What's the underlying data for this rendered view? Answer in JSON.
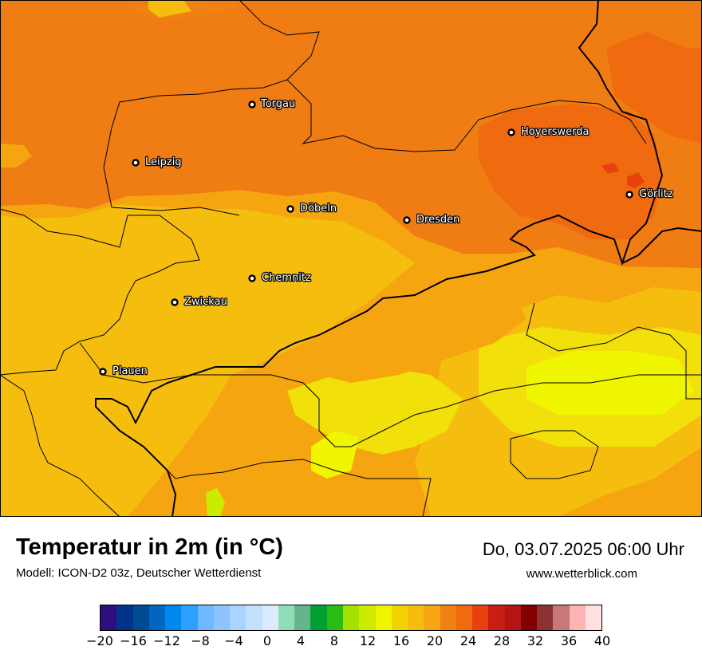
{
  "title": "Temperatur in 2m (in °C)",
  "subtitle": "Modell: ICON-D2 03z, Deutscher Wetterdienst",
  "datetime": "Do, 03.07.2025 06:00 Uhr",
  "website": "www.wetterblick.com",
  "colors": {
    "warm_orange": "#F07C14",
    "deep_orange": "#F06A0F",
    "amber": "#F5A50F",
    "golden": "#F5BE0F",
    "yellow": "#F2E00A",
    "light_yellow": "#F0F500",
    "lime": "#CCEB00",
    "red_orange": "#E8400F",
    "border": "#000000"
  },
  "cities": [
    {
      "name": "Torgau"
    },
    {
      "name": "Hoyerswerda"
    },
    {
      "name": "Leipzig"
    },
    {
      "name": "Görlitz"
    },
    {
      "name": "Döbeln"
    },
    {
      "name": "Dresden"
    },
    {
      "name": "Chemnitz"
    },
    {
      "name": "Zwickau"
    },
    {
      "name": "Plauen"
    }
  ],
  "legend": {
    "colors": [
      "#2E0E7A",
      "#00338A",
      "#004C94",
      "#0066C2",
      "#0088EE",
      "#2EA0FF",
      "#70B8FF",
      "#8CC4FF",
      "#A8D4FF",
      "#C4E0FF",
      "#DCEBFF",
      "#90DCB8",
      "#64B48C",
      "#00A032",
      "#28BE14",
      "#A4E100",
      "#CCEB00",
      "#F0F500",
      "#F2D200",
      "#F5BE0F",
      "#F5A50F",
      "#F08214",
      "#F06A0F",
      "#E8400F",
      "#C81E14",
      "#B41414",
      "#820000",
      "#8C3232",
      "#C87878",
      "#FFB4B4",
      "#FFE1E1"
    ],
    "ticks": [
      "−20",
      "−16",
      "−12",
      "−8",
      "−4",
      "0",
      "4",
      "8",
      "12",
      "16",
      "20",
      "24",
      "28",
      "32",
      "36",
      "40"
    ]
  }
}
